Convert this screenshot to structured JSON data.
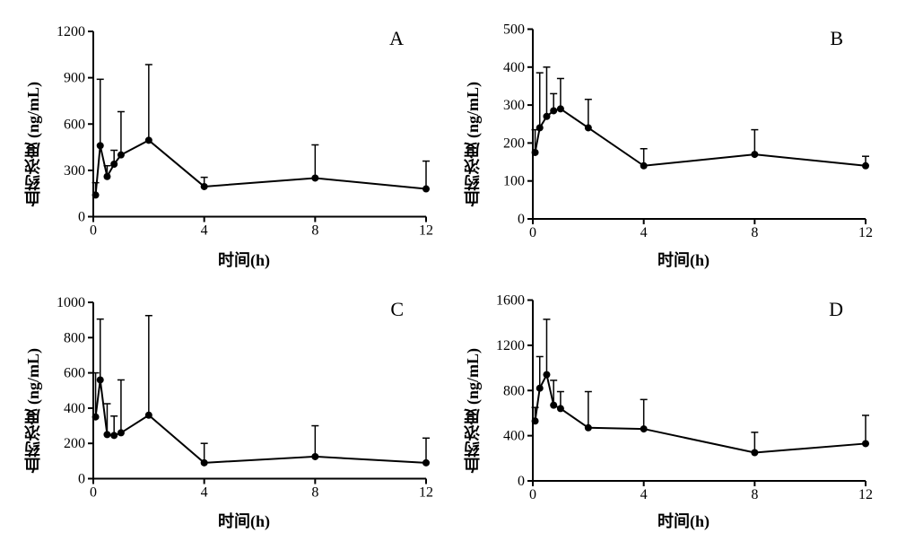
{
  "figure": {
    "background_color": "#ffffff",
    "grid": [
      2,
      2
    ],
    "font_family": "Times New Roman",
    "panels": [
      {
        "id": "A",
        "label": "A",
        "type": "line_errorbar",
        "ylabel": "血药浓度 (ng/mL)",
        "xlabel": "时间(h)",
        "label_fontsize": 18,
        "xlim": [
          0,
          12
        ],
        "ylim": [
          0,
          1200
        ],
        "xticks": [
          0,
          4,
          8,
          12
        ],
        "yticks": [
          0,
          300,
          600,
          900,
          1200
        ],
        "line_color": "#000000",
        "marker": "circle",
        "marker_size": 4,
        "line_width": 2,
        "points": [
          {
            "x": 0.083,
            "y": 140,
            "err": 80
          },
          {
            "x": 0.25,
            "y": 460,
            "err": 430
          },
          {
            "x": 0.5,
            "y": 260,
            "err": 70
          },
          {
            "x": 0.75,
            "y": 340,
            "err": 90
          },
          {
            "x": 1,
            "y": 400,
            "err": 280
          },
          {
            "x": 2,
            "y": 495,
            "err": 490
          },
          {
            "x": 4,
            "y": 195,
            "err": 60
          },
          {
            "x": 8,
            "y": 250,
            "err": 215
          },
          {
            "x": 12,
            "y": 180,
            "err": 180
          }
        ]
      },
      {
        "id": "B",
        "label": "B",
        "type": "line_errorbar",
        "ylabel": "血药浓度 (ng/mL)",
        "xlabel": "时间(h)",
        "label_fontsize": 18,
        "xlim": [
          0,
          12
        ],
        "ylim": [
          0,
          500
        ],
        "xticks": [
          0,
          4,
          8,
          12
        ],
        "yticks": [
          0,
          100,
          200,
          300,
          400,
          500
        ],
        "line_color": "#000000",
        "marker": "circle",
        "marker_size": 4,
        "line_width": 2,
        "points": [
          {
            "x": 0.083,
            "y": 175,
            "err": 60
          },
          {
            "x": 0.25,
            "y": 240,
            "err": 145
          },
          {
            "x": 0.5,
            "y": 270,
            "err": 130
          },
          {
            "x": 0.75,
            "y": 285,
            "err": 45
          },
          {
            "x": 1,
            "y": 290,
            "err": 80
          },
          {
            "x": 2,
            "y": 240,
            "err": 75
          },
          {
            "x": 4,
            "y": 140,
            "err": 45
          },
          {
            "x": 8,
            "y": 170,
            "err": 65
          },
          {
            "x": 12,
            "y": 140,
            "err": 25
          }
        ]
      },
      {
        "id": "C",
        "label": "C",
        "type": "line_errorbar",
        "ylabel": "血药浓度 (ng/mL)",
        "xlabel": "时间(h)",
        "label_fontsize": 18,
        "xlim": [
          0,
          12
        ],
        "ylim": [
          0,
          1000
        ],
        "xticks": [
          0,
          4,
          8,
          12
        ],
        "yticks": [
          0,
          200,
          400,
          600,
          800,
          1000
        ],
        "line_color": "#000000",
        "marker": "circle",
        "marker_size": 4,
        "line_width": 2,
        "points": [
          {
            "x": 0.083,
            "y": 350,
            "err": 250
          },
          {
            "x": 0.25,
            "y": 560,
            "err": 345
          },
          {
            "x": 0.5,
            "y": 250,
            "err": 175
          },
          {
            "x": 0.75,
            "y": 245,
            "err": 110
          },
          {
            "x": 1,
            "y": 260,
            "err": 300
          },
          {
            "x": 2,
            "y": 360,
            "err": 565
          },
          {
            "x": 4,
            "y": 90,
            "err": 110
          },
          {
            "x": 8,
            "y": 125,
            "err": 175
          },
          {
            "x": 12,
            "y": 90,
            "err": 140
          }
        ]
      },
      {
        "id": "D",
        "label": "D",
        "type": "line_errorbar",
        "ylabel": "血药浓度 (ng/mL)",
        "xlabel": "时间(h)",
        "label_fontsize": 18,
        "xlim": [
          0,
          12
        ],
        "ylim": [
          0,
          1600
        ],
        "xticks": [
          0,
          4,
          8,
          12
        ],
        "yticks": [
          0,
          400,
          800,
          1200,
          1600
        ],
        "line_color": "#000000",
        "marker": "circle",
        "marker_size": 4,
        "line_width": 2,
        "points": [
          {
            "x": 0.083,
            "y": 530,
            "err": 120
          },
          {
            "x": 0.25,
            "y": 820,
            "err": 280
          },
          {
            "x": 0.5,
            "y": 940,
            "err": 490
          },
          {
            "x": 0.75,
            "y": 670,
            "err": 220
          },
          {
            "x": 1,
            "y": 640,
            "err": 150
          },
          {
            "x": 2,
            "y": 470,
            "err": 320
          },
          {
            "x": 4,
            "y": 460,
            "err": 260
          },
          {
            "x": 8,
            "y": 250,
            "err": 180
          },
          {
            "x": 12,
            "y": 330,
            "err": 250
          }
        ]
      }
    ]
  }
}
